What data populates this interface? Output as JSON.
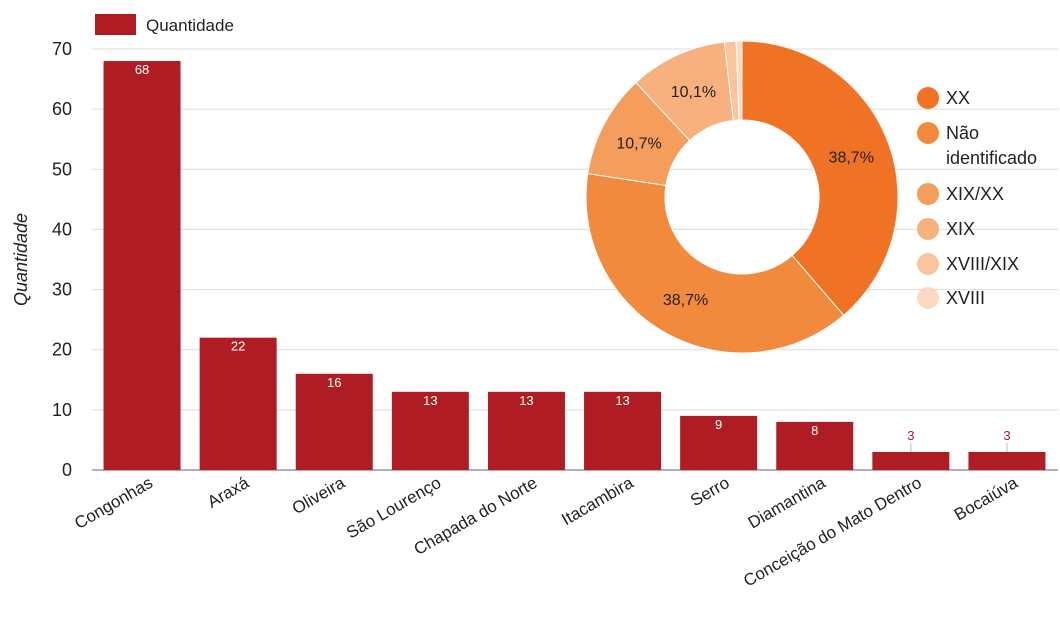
{
  "chart_data": [
    {
      "type": "bar",
      "title": "",
      "xlabel": "",
      "ylabel": "Quantidade",
      "ylim": [
        0,
        70
      ],
      "yticks": [
        0,
        10,
        20,
        30,
        40,
        50,
        60,
        70
      ],
      "grid": true,
      "legend_position": "top-left",
      "categories": [
        "Congonhas",
        "Araxá",
        "Oliveira",
        "São Lourenço",
        "Chapada do Norte",
        "Itacambira",
        "Serro",
        "Diamantina",
        "Conceição do Mato Dentro",
        "Bocaiúva"
      ],
      "series": [
        {
          "name": "Quantidade",
          "color": "#b01c23",
          "values": [
            68,
            22,
            16,
            13,
            13,
            13,
            9,
            8,
            3,
            3
          ]
        }
      ],
      "data_labels": [
        "68",
        "22",
        "16",
        "13",
        "13",
        "13",
        "9",
        "8",
        "3",
        "3"
      ]
    },
    {
      "type": "pie",
      "style": "donut",
      "legend_position": "right",
      "slices": [
        {
          "label": "XX",
          "value": 38.7,
          "display": "38,7%",
          "color": "#f07224"
        },
        {
          "label": "Não identificado",
          "value": 38.7,
          "display": "38,7%",
          "color": "#f28a3e"
        },
        {
          "label": "XIX/XX",
          "value": 10.7,
          "display": "10,7%",
          "color": "#f49d5d"
        },
        {
          "label": "XIX",
          "value": 10.1,
          "display": "10,1%",
          "color": "#f7b07e"
        },
        {
          "label": "XVIII/XIX",
          "value": 1.2,
          "display": "",
          "color": "#f9c49e"
        },
        {
          "label": "XVIII",
          "value": 0.6,
          "display": "",
          "color": "#fcd9c0"
        }
      ]
    }
  ]
}
